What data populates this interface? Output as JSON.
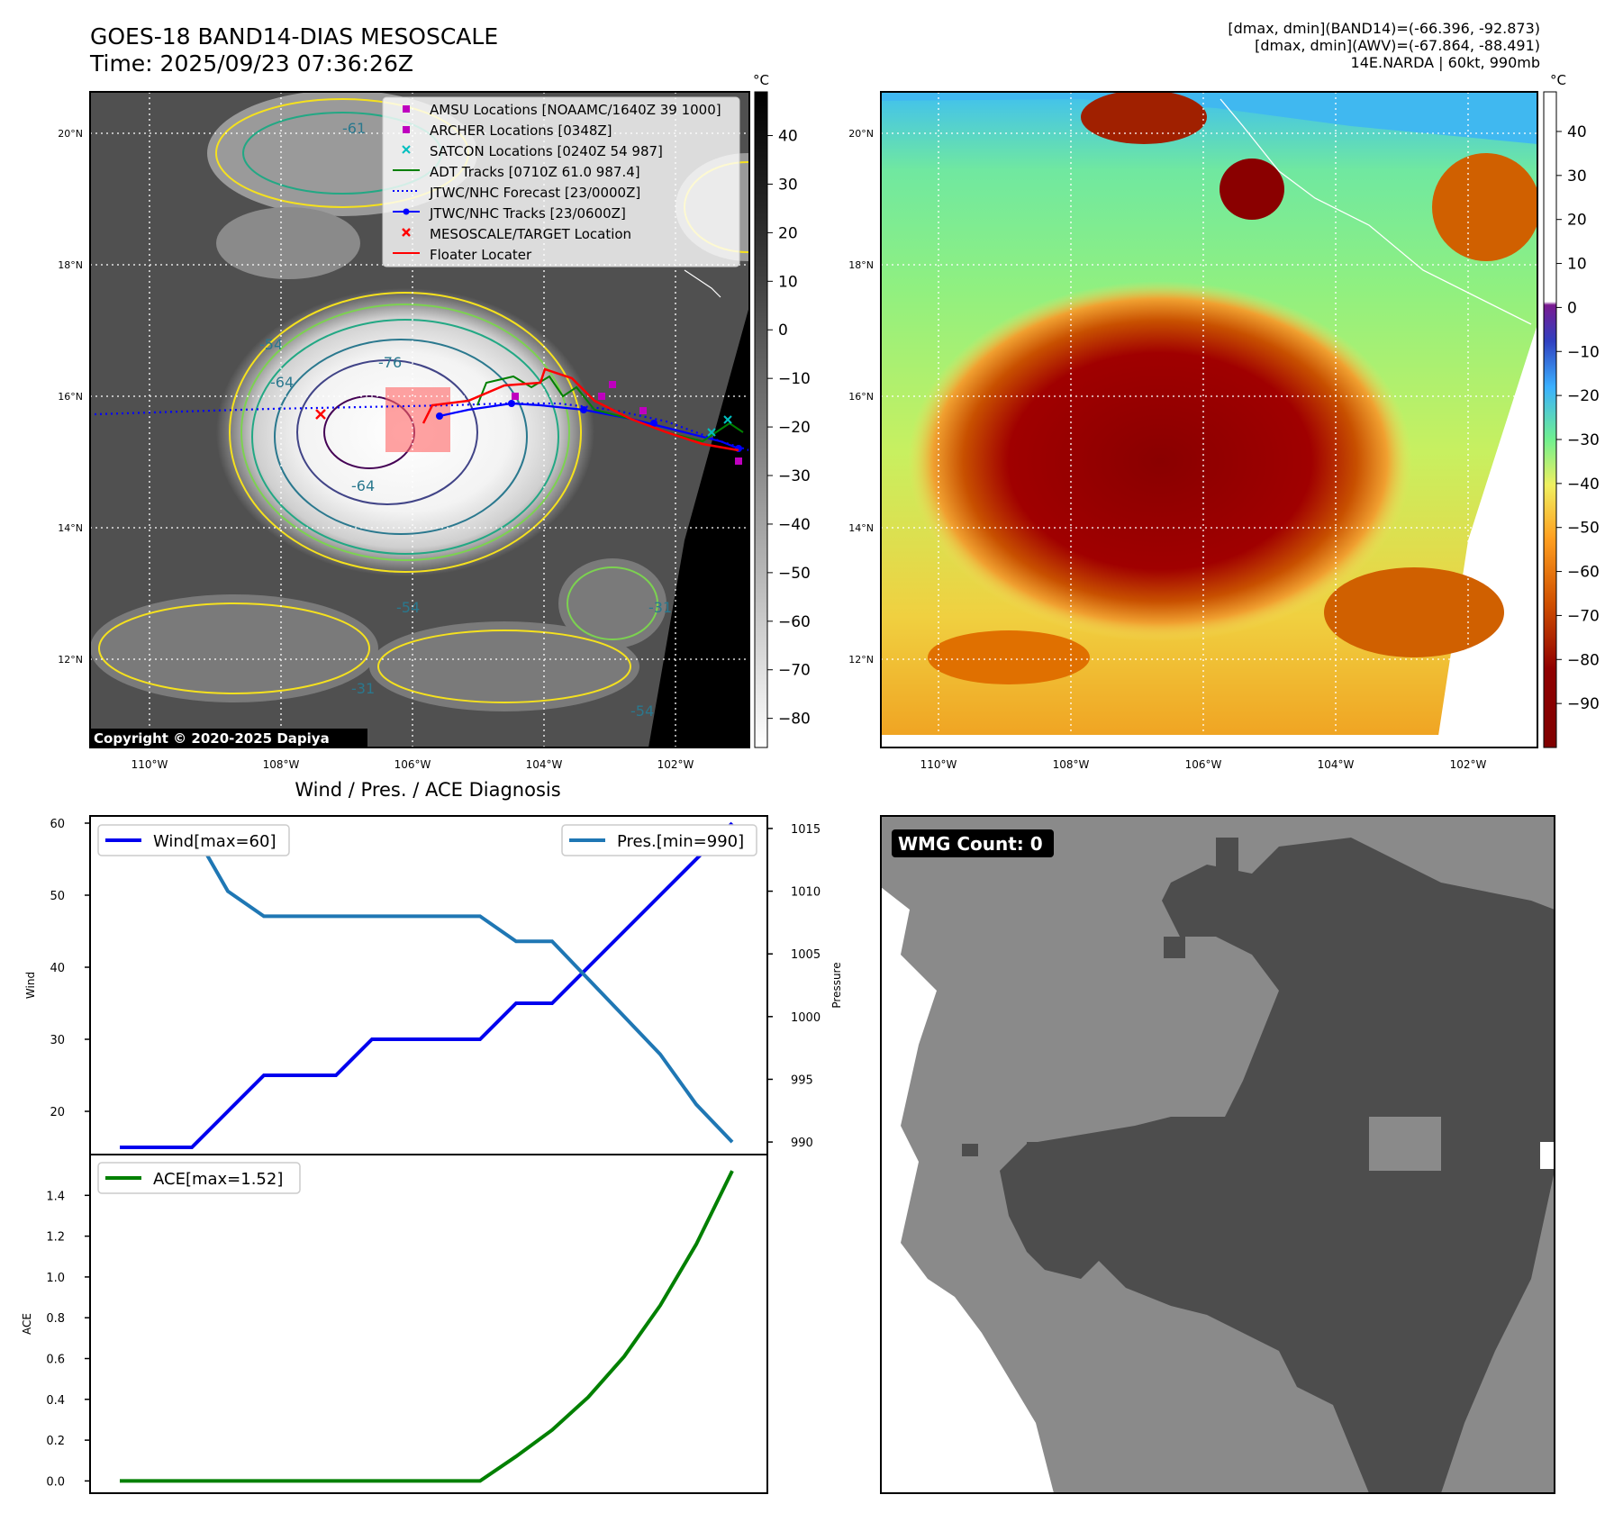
{
  "header": {
    "title": "GOES-18 BAND14-DIAS MESOSCALE",
    "time": "Time: 2025/09/23 07:36:26Z",
    "stats_band14": "[dmax, dmin](BAND14)=(-66.396, -92.873)",
    "stats_awv": "[dmax, dmin](AWV)=(-67.864, -88.491)",
    "storm": "14E.NARDA | 60kt, 990mb"
  },
  "colors": {
    "wind": "#0000ee",
    "pressure": "#1f77b4",
    "ace": "#008000",
    "adt": "#008000",
    "forecast": "#0000ff",
    "track": "#0000ff",
    "floater": "#ff0000",
    "amsu": "#bf00bf",
    "satcon": "#00bfbf",
    "wmg_dark": "#4d4d4d",
    "wmg_light": "#8a8a8a"
  },
  "maps": {
    "unit": "°C",
    "lon_labels": [
      "110°W",
      "108°W",
      "106°W",
      "104°W",
      "102°W"
    ],
    "lat_labels": [
      "20°N",
      "18°N",
      "16°N",
      "14°N",
      "12°N"
    ],
    "ir_colorbar_ticks": [
      "40",
      "30",
      "20",
      "10",
      "0",
      "−10",
      "−20",
      "−30",
      "−40",
      "−50",
      "−60",
      "−70",
      "−80"
    ],
    "awv_colorbar_ticks": [
      "40",
      "30",
      "20",
      "10",
      "0",
      "−10",
      "−20",
      "−30",
      "−40",
      "−50",
      "−60",
      "−70",
      "−80",
      "−90"
    ],
    "contour_labels": [
      "-76",
      "-64",
      "-54",
      "-54",
      "-31",
      "-31",
      "-64",
      "-61",
      "-54"
    ],
    "copyright": "Copyright © 2020-2025 Dapiya",
    "legend": [
      {
        "label": "AMSU Locations [NOAAMC/1640Z 39 1000]",
        "icon": "square-marker-icon"
      },
      {
        "label": "ARCHER Locations [0348Z]",
        "icon": "square-marker-icon"
      },
      {
        "label": "SATCON Locations [0240Z 54 987]",
        "icon": "x-marker-icon"
      },
      {
        "label": "ADT Tracks [0710Z 61.0 987.4]",
        "icon": "line-icon"
      },
      {
        "label": "JTWC/NHC Forecast [23/0000Z]",
        "icon": "dotted-line-icon"
      },
      {
        "label": "JTWC/NHC Tracks [23/0600Z]",
        "icon": "dot-line-icon"
      },
      {
        "label": "MESOSCALE/TARGET Location",
        "icon": "x-marker-icon"
      },
      {
        "label": "Floater Locater",
        "icon": "line-icon"
      }
    ]
  },
  "chart_data": [
    {
      "type": "line",
      "title": "Wind / Pres. / ACE Diagnosis",
      "ylabel": "Wind",
      "y2label": "Pressure",
      "ylim": [
        14,
        61
      ],
      "y2lim": [
        989,
        1016
      ],
      "yticks": [
        20,
        30,
        40,
        50,
        60
      ],
      "y2ticks": [
        990,
        995,
        1000,
        1005,
        1010,
        1015
      ],
      "series": [
        {
          "name": "Wind[max=60]",
          "axis": "left",
          "values": [
            15,
            15,
            15,
            20,
            25,
            25,
            25,
            30,
            30,
            30,
            30,
            35,
            35,
            40,
            45,
            50,
            55,
            60
          ]
        },
        {
          "name": "Pres.[min=990]",
          "axis": "right",
          "values": [
            1015,
            1015,
            1015,
            1010,
            1008,
            1008,
            1008,
            1008,
            1008,
            1008,
            1008,
            1006,
            1006,
            1003,
            1000,
            997,
            993,
            990
          ]
        }
      ]
    },
    {
      "type": "line",
      "ylabel": "ACE",
      "ylim": [
        -0.06,
        1.6
      ],
      "yticks": [
        "0.0",
        "0.2",
        "0.4",
        "0.6",
        "0.8",
        "1.0",
        "1.2",
        "1.4"
      ],
      "series": [
        {
          "name": "ACE[max=1.52]",
          "values": [
            0,
            0,
            0,
            0,
            0,
            0,
            0,
            0,
            0,
            0,
            0,
            0.12,
            0.25,
            0.41,
            0.61,
            0.86,
            1.16,
            1.52
          ]
        }
      ]
    }
  ],
  "wmg": {
    "label": "WMG Count: 0"
  }
}
